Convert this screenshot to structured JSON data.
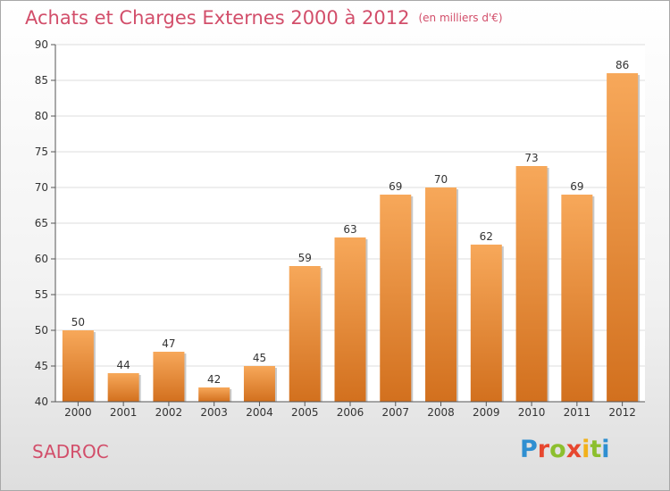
{
  "header": {
    "title": "Achats et Charges Externes 2000 à 2012",
    "unit": "(en milliers d'€)"
  },
  "commune": "SADROC",
  "logo": {
    "text": "Proxiti",
    "colors": [
      "#2f8fd1",
      "#e7472f",
      "#8cbf2e",
      "#f2b11b"
    ]
  },
  "chart_data": {
    "type": "bar",
    "title": "Achats et Charges Externes 2000 à 2012",
    "subtitle": "(en milliers d'€)",
    "categories": [
      "2000",
      "2001",
      "2002",
      "2003",
      "2004",
      "2005",
      "2006",
      "2007",
      "2008",
      "2009",
      "2010",
      "2011",
      "2012"
    ],
    "values": [
      50,
      44,
      47,
      42,
      45,
      59,
      63,
      69,
      70,
      62,
      73,
      69,
      86
    ],
    "ylim": [
      40,
      90
    ],
    "yticks": [
      40,
      45,
      50,
      55,
      60,
      65,
      70,
      75,
      80,
      85,
      90
    ],
    "grid": true,
    "bar_color_top": "#f7a85a",
    "bar_color_bottom": "#d2701e"
  }
}
